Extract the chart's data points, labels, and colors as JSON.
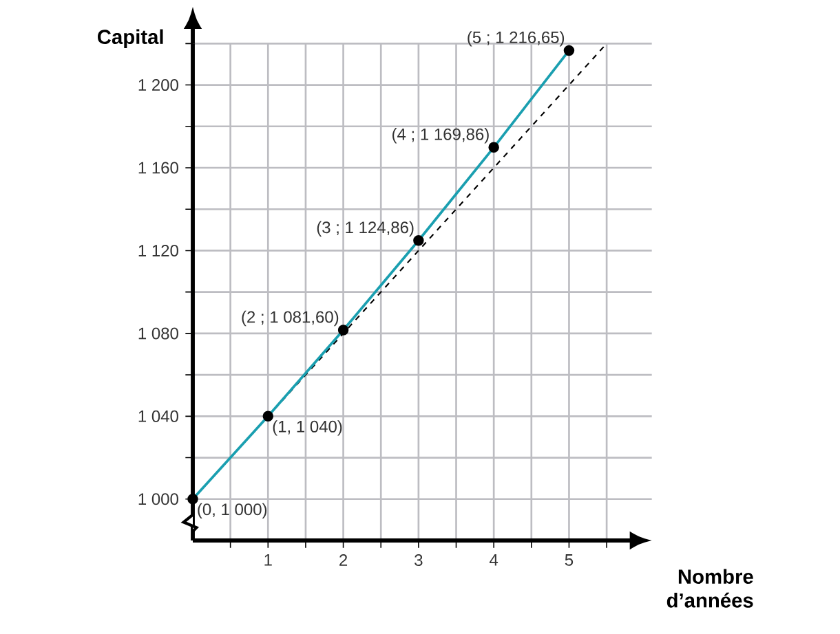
{
  "chart_data": {
    "type": "line",
    "ylabel": "Capital",
    "xlabel": "Nombre d’années",
    "xlim": [
      0,
      6.1
    ],
    "ylim": [
      980,
      1220
    ],
    "xticks": [
      {
        "value": 0.5,
        "label": null
      },
      1,
      {
        "value": 1.5,
        "label": null
      },
      2,
      {
        "value": 2.5,
        "label": null
      },
      3,
      {
        "value": 3.5,
        "label": null
      },
      4,
      {
        "value": 4.5,
        "label": null
      },
      5,
      {
        "value": 5.5,
        "label": null
      }
    ],
    "yticks": [
      {
        "value": 1000,
        "label": "1 000"
      },
      {
        "value": 1020,
        "label": null
      },
      {
        "value": 1040,
        "label": "1 040"
      },
      {
        "value": 1060,
        "label": null
      },
      {
        "value": 1080,
        "label": "1 080"
      },
      {
        "value": 1100,
        "label": null
      },
      {
        "value": 1120,
        "label": "1 120"
      },
      {
        "value": 1140,
        "label": null
      },
      {
        "value": 1160,
        "label": "1 160"
      },
      {
        "value": 1180,
        "label": null
      },
      {
        "value": 1200,
        "label": "1 200"
      },
      {
        "value": 1220,
        "label": null
      }
    ],
    "grid": true,
    "series": [
      {
        "color": "#000000",
        "line_style": "dashed",
        "x": [
          0,
          5.5
        ],
        "values": [
          1000,
          1220
        ]
      },
      {
        "color": "#1a9fb0",
        "line_style": "solid",
        "marker": "circle",
        "x": [
          0,
          1,
          2,
          3,
          4,
          5
        ],
        "values": [
          1000,
          1040,
          1081.6,
          1124.86,
          1169.86,
          1216.65
        ]
      }
    ],
    "annotations": [
      {
        "text": "(0, 1 000)",
        "x": 0,
        "y": 1000
      },
      {
        "text": "(1, 1 040)",
        "x": 1,
        "y": 1040
      },
      {
        "text": "(2 ; 1 081,60)",
        "x": 2,
        "y": 1081.6
      },
      {
        "text": "(3 ; 1 124,86)",
        "x": 3,
        "y": 1124.86
      },
      {
        "text": "(4 ; 1 169,86)",
        "x": 4,
        "y": 1169.86
      },
      {
        "text": "(5 ; 1 216,65)",
        "x": 5,
        "y": 1216.65
      }
    ]
  }
}
